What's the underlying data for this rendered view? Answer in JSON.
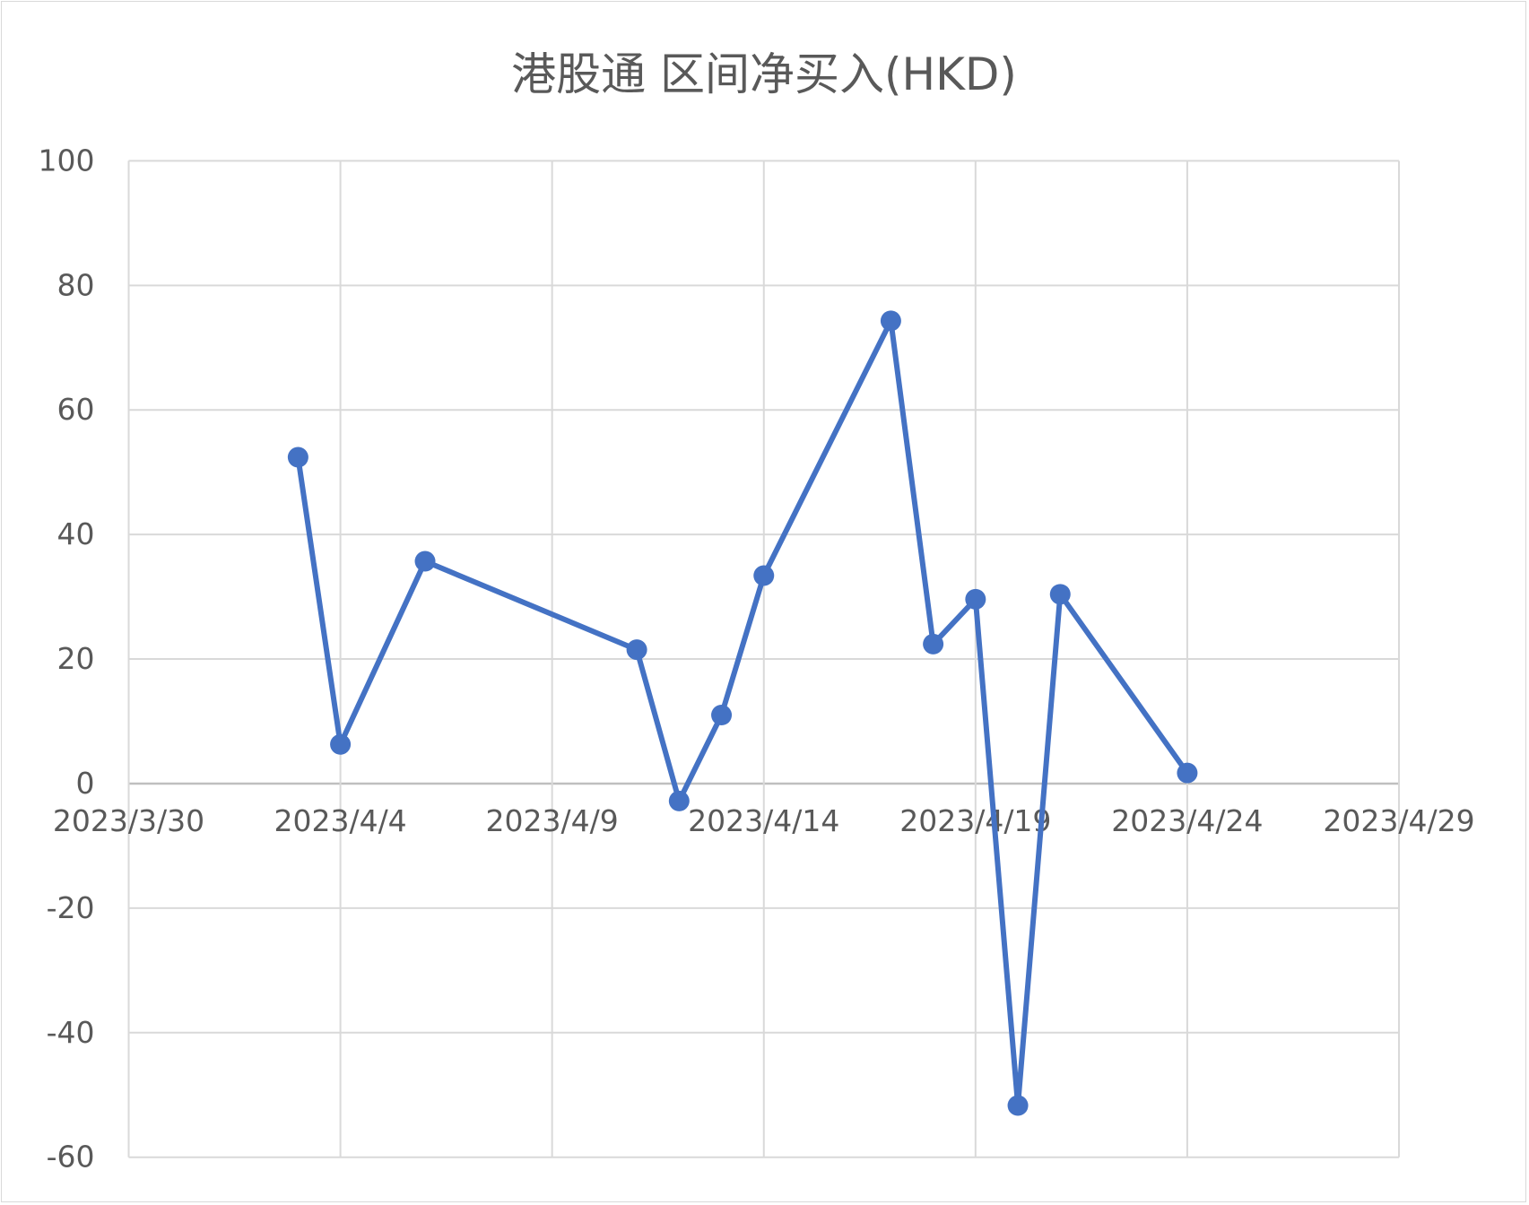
{
  "chart_data": {
    "type": "line",
    "title": "港股通 区间净买入(HKD)",
    "xlabel": "",
    "ylabel": "",
    "x_axis_type": "date",
    "xlim": [
      "2023-03-30",
      "2023-04-29"
    ],
    "x_tick_labels": [
      "2023/3/30",
      "2023/4/4",
      "2023/4/9",
      "2023/4/14",
      "2023/4/19",
      "2023/4/24",
      "2023/4/29"
    ],
    "x_ticks": [
      "2023-03-30",
      "2023-04-04",
      "2023-04-09",
      "2023-04-14",
      "2023-04-19",
      "2023-04-24",
      "2023-04-29"
    ],
    "ylim": [
      -60,
      100
    ],
    "y_ticks": [
      100,
      80,
      60,
      40,
      20,
      0,
      -20,
      -40,
      -60
    ],
    "y_tick_labels": [
      "100",
      "80",
      "60",
      "40",
      "20",
      "0",
      "-20",
      "-40",
      "-60"
    ],
    "grid": true,
    "legend": "none",
    "series": [
      {
        "color": "#4472C4",
        "marker": "circle",
        "points": [
          {
            "x": "2023-04-03",
            "y": 52.4
          },
          {
            "x": "2023-04-04",
            "y": 6.3
          },
          {
            "x": "2023-04-06",
            "y": 35.7
          },
          {
            "x": "2023-04-11",
            "y": 21.5
          },
          {
            "x": "2023-04-12",
            "y": -2.8
          },
          {
            "x": "2023-04-13",
            "y": 11.0
          },
          {
            "x": "2023-04-14",
            "y": 33.4
          },
          {
            "x": "2023-04-17",
            "y": 74.3
          },
          {
            "x": "2023-04-18",
            "y": 22.4
          },
          {
            "x": "2023-04-19",
            "y": 29.6
          },
          {
            "x": "2023-04-20",
            "y": -51.7
          },
          {
            "x": "2023-04-21",
            "y": 30.4
          },
          {
            "x": "2023-04-24",
            "y": 1.7
          }
        ]
      }
    ]
  }
}
